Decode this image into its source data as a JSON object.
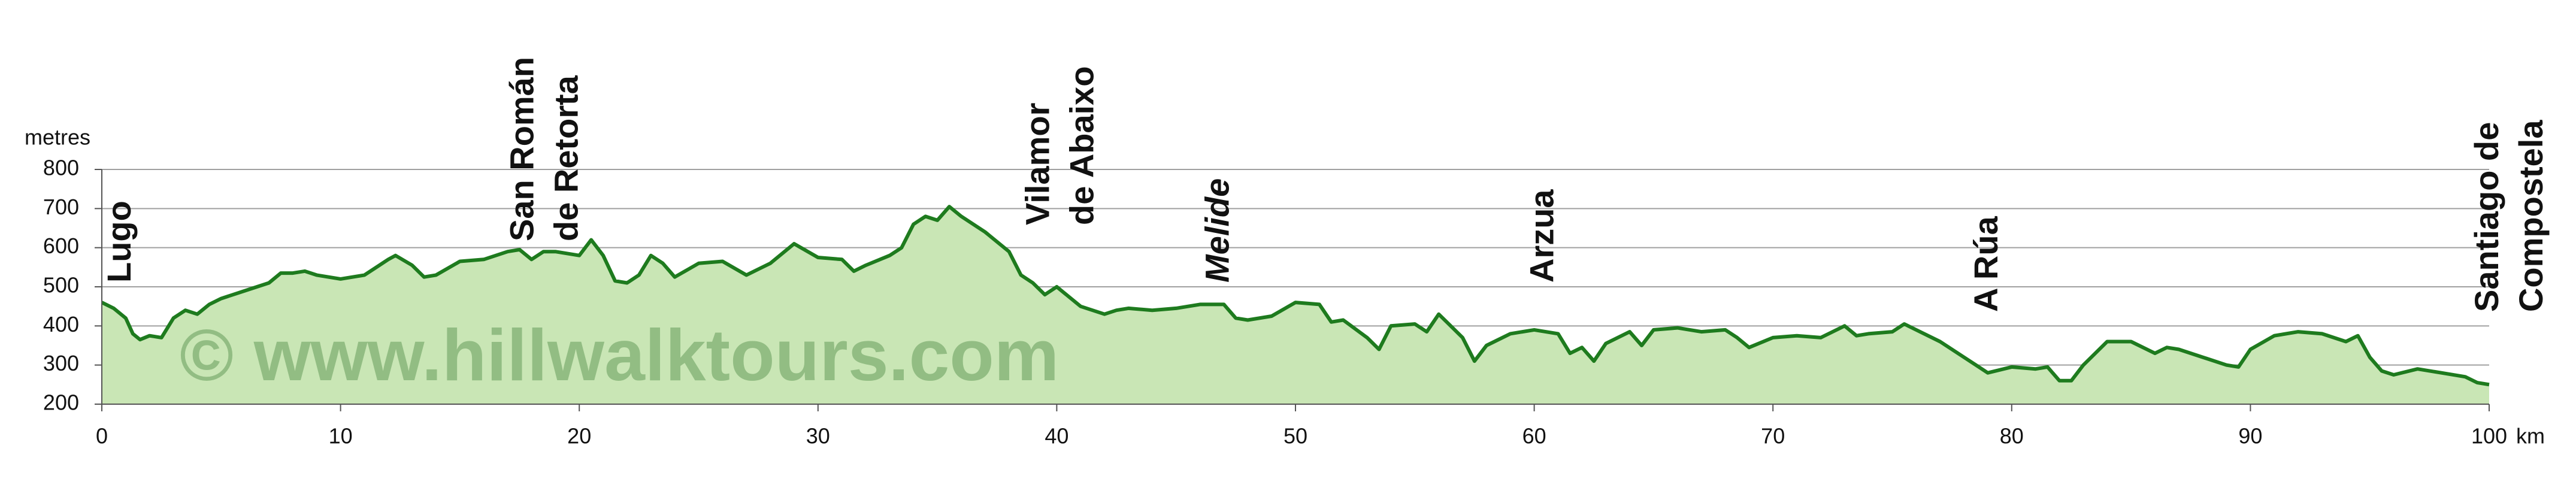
{
  "chart_data": {
    "type": "area",
    "y_label": "metres",
    "x_label": "km",
    "watermark": "© www.hillwalktours.com",
    "line_color": "#1e7b1e",
    "fill_color": "#c9e6b5",
    "grid": true,
    "xlim": [
      0,
      100
    ],
    "ylim": [
      200,
      800
    ],
    "xticks": [
      0,
      10,
      20,
      30,
      40,
      50,
      60,
      70,
      80,
      90,
      100
    ],
    "yticks": [
      200,
      300,
      400,
      500,
      600,
      700,
      800
    ],
    "x": [
      0,
      0.5,
      1,
      1.3,
      1.6,
      2,
      2.5,
      3,
      3.5,
      4,
      4.5,
      5,
      6,
      7,
      7.5,
      8,
      8.5,
      9,
      9.5,
      10,
      10.5,
      11,
      12,
      12.3,
      13,
      13.5,
      14,
      15,
      16,
      17,
      17.5,
      18,
      18.5,
      19,
      20,
      20.5,
      21,
      21.5,
      22,
      22.5,
      23,
      23.5,
      24,
      25,
      26,
      27,
      28,
      29,
      30,
      31,
      31.5,
      32,
      33,
      33.5,
      34,
      34.5,
      35,
      35.5,
      36,
      37,
      38,
      38.5,
      39,
      39.5,
      40,
      40.5,
      41,
      42,
      42.5,
      43,
      44,
      45,
      45.5,
      46,
      47,
      47.5,
      48,
      49,
      50,
      51,
      51.5,
      52,
      53,
      53.5,
      54,
      55,
      55.5,
      56,
      57,
      57.5,
      58,
      59,
      60,
      61,
      61.5,
      62,
      62.5,
      63,
      64,
      64.5,
      65,
      66,
      67,
      68,
      68.5,
      69,
      70,
      71,
      72,
      73,
      73.5,
      74,
      75,
      75.5,
      76,
      77,
      78,
      79,
      80,
      81,
      81.5,
      82,
      82.5,
      83,
      84,
      85,
      86,
      86.5,
      87,
      88,
      89,
      89.5,
      90,
      91,
      92,
      93,
      94,
      94.5,
      95,
      95.5,
      96,
      97,
      98,
      99,
      99.5,
      100
    ],
    "values": [
      460,
      445,
      420,
      380,
      365,
      375,
      370,
      420,
      440,
      430,
      455,
      470,
      490,
      510,
      535,
      535,
      540,
      530,
      525,
      520,
      525,
      530,
      570,
      580,
      555,
      525,
      530,
      565,
      570,
      590,
      595,
      570,
      590,
      590,
      580,
      620,
      580,
      515,
      510,
      530,
      580,
      560,
      525,
      560,
      565,
      530,
      560,
      610,
      575,
      570,
      540,
      555,
      580,
      600,
      660,
      680,
      670,
      705,
      680,
      640,
      590,
      530,
      510,
      480,
      500,
      475,
      450,
      430,
      440,
      445,
      440,
      445,
      450,
      455,
      455,
      420,
      415,
      425,
      460,
      455,
      410,
      415,
      370,
      340,
      400,
      405,
      385,
      430,
      370,
      310,
      350,
      380,
      390,
      380,
      330,
      345,
      310,
      355,
      385,
      350,
      390,
      395,
      385,
      390,
      370,
      345,
      370,
      375,
      370,
      400,
      375,
      380,
      385,
      405,
      390,
      360,
      320,
      280,
      295,
      290,
      295,
      260,
      260,
      300,
      360,
      360,
      330,
      345,
      340,
      320,
      300,
      295,
      340,
      375,
      385,
      380,
      360,
      375,
      320,
      285,
      275,
      290,
      280,
      270,
      255,
      250
    ],
    "places": [
      {
        "lines": [
          "Lugo"
        ],
        "km": 0.7
      },
      {
        "lines": [
          "San Román",
          "de Retorta"
        ],
        "km": 18.5
      },
      {
        "lines": [
          "Vilamor",
          "de Abaixo"
        ],
        "km": 40.1
      },
      {
        "lines": [
          "Melide"
        ],
        "km": 46.7,
        "italic": true
      },
      {
        "lines": [
          "Arzua"
        ],
        "km": 60.3
      },
      {
        "lines": [
          "A Rúa"
        ],
        "km": 78.9
      },
      {
        "lines": [
          "Santiago de",
          "Compostela"
        ],
        "km": 100.8
      }
    ]
  }
}
